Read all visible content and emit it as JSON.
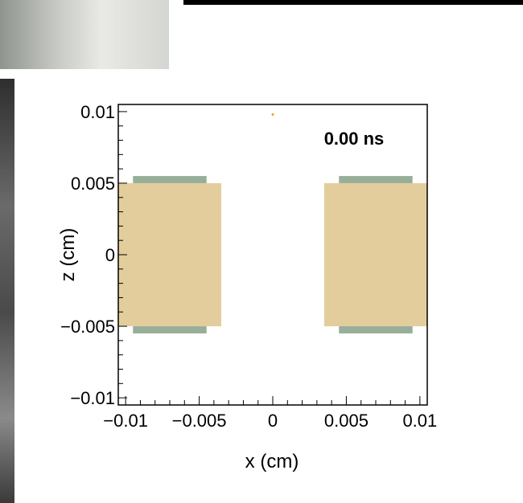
{
  "chart_data": {
    "type": "scatter",
    "title": "",
    "annotation": "0.00 ns",
    "xlabel": "x (cm)",
    "ylabel": "z (cm)",
    "xlim": [
      -0.0105,
      0.0105
    ],
    "ylim": [
      -0.0105,
      0.0105
    ],
    "x_ticks": [
      {
        "value": -0.01,
        "label": "−0.01"
      },
      {
        "value": -0.005,
        "label": "−0.005"
      },
      {
        "value": 0,
        "label": "0"
      },
      {
        "value": 0.005,
        "label": "0.005"
      },
      {
        "value": 0.01,
        "label": "0.01"
      }
    ],
    "y_ticks": [
      {
        "value": -0.01,
        "label": "−0.01"
      },
      {
        "value": -0.005,
        "label": "−0.005"
      },
      {
        "value": 0,
        "label": "0"
      },
      {
        "value": 0.005,
        "label": "0.005"
      },
      {
        "value": 0.01,
        "label": "0.01"
      }
    ],
    "regions": [
      {
        "x0": -0.0105,
        "x1": -0.0035,
        "z0": -0.005,
        "z1": 0.005,
        "color": "#e4cd9c"
      },
      {
        "x0": 0.0035,
        "x1": 0.0105,
        "z0": -0.005,
        "z1": 0.005,
        "color": "#e4cd9c"
      },
      {
        "x0": -0.0095,
        "x1": -0.0045,
        "z0": 0.005,
        "z1": 0.0055,
        "color": "#97ae99"
      },
      {
        "x0": -0.0095,
        "x1": -0.0045,
        "z0": -0.0055,
        "z1": -0.005,
        "color": "#97ae99"
      },
      {
        "x0": 0.0045,
        "x1": 0.0095,
        "z0": 0.005,
        "z1": 0.0055,
        "color": "#97ae99"
      },
      {
        "x0": 0.0045,
        "x1": 0.0095,
        "z0": -0.0055,
        "z1": -0.005,
        "color": "#97ae99"
      }
    ],
    "points": [
      {
        "x": 0.0,
        "z": 0.0098,
        "color": "#f59a23"
      }
    ],
    "grid": false
  }
}
